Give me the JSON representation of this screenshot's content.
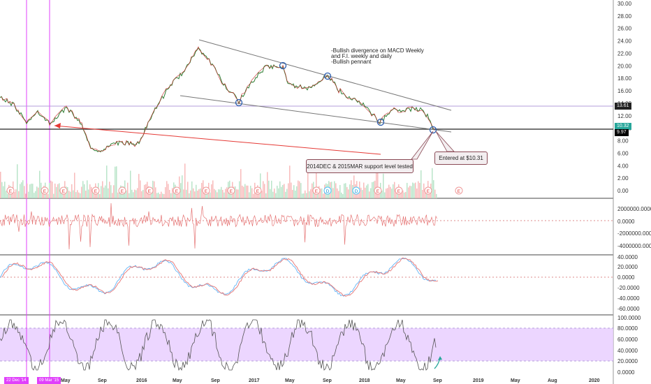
{
  "price_axis": [
    "30.00",
    "28.00",
    "26.00",
    "24.00",
    "22.00",
    "20.00",
    "18.00",
    "16.00",
    "14.00",
    "12.00",
    "10.00",
    "8.00",
    "6.00",
    "4.00",
    "2.00",
    "0.00"
  ],
  "price_tags": {
    "upper": "13.61",
    "mid": "10.32",
    "lower": "9.97"
  },
  "colors": {
    "resistance_tag": "#222222",
    "mid_tag": "#26a69a",
    "lower_tag": "#000000",
    "purple": "#e040fb",
    "red_arrow": "#e53935",
    "circle": "#2a5db0",
    "band": "#e7ccff"
  },
  "annotation_lines": [
    "-Bullish divergence on MACD Weekly",
    "and F.I. weekly and daily",
    "-Bullish pennant"
  ],
  "callout_support": "2014DEC & 2015MAR support level tested",
  "callout_entry": "Entered at $10.31",
  "earnings_markers": [
    "E",
    "E",
    "E",
    "E",
    "E",
    "E",
    "E",
    "E",
    "E",
    "E",
    "D",
    "D",
    "E",
    "E",
    "E",
    "E"
  ],
  "force_index_axis": [
    "2000000.0000",
    "0.0000",
    "-2000000.0000",
    "-4000000.0000"
  ],
  "macd_axis": [
    "40.0000",
    "20.0000",
    "0.0000",
    "-20.0000",
    "-40.0000",
    "-60.0000"
  ],
  "stoch_axis": [
    "100.0000",
    "80.0000",
    "60.0000",
    "40.0000",
    "20.0000",
    "0.0000"
  ],
  "x_axis": [
    "May",
    "Sep",
    "2016",
    "May",
    "Sep",
    "2017",
    "May",
    "Sep",
    "2018",
    "May",
    "Sep",
    "2019",
    "May",
    "Aug",
    "2020"
  ],
  "range_tags": {
    "start": "22 Dec '14",
    "end": "09 Mar '15"
  }
}
